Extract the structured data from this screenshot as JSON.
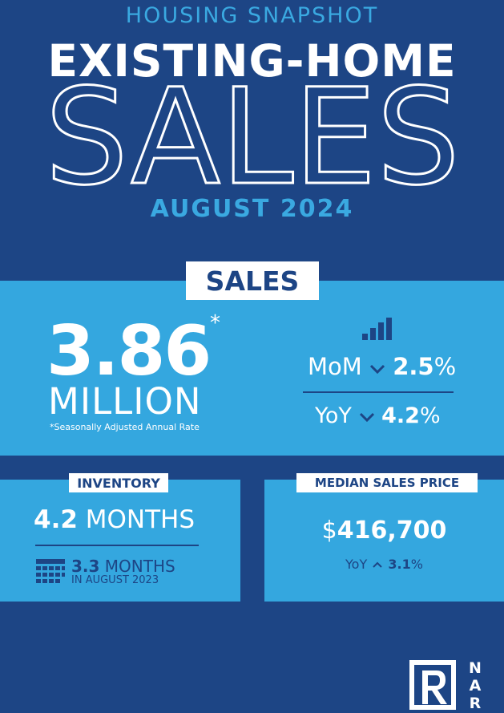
{
  "header": {
    "kicker": "HOUSING SNAPSHOT",
    "title": "EXISTING-HOME",
    "big": "SALES",
    "period": "AUGUST 2024"
  },
  "sales": {
    "label": "SALES",
    "value": "3.86",
    "asterisk": "*",
    "unit": "MILLION",
    "note": "*Seasonally Adjusted Annual Rate",
    "mom": {
      "label": "MoM",
      "value": "2.5",
      "unit": "%"
    },
    "yoy": {
      "label": "YoY",
      "value": "4.2",
      "unit": "%"
    }
  },
  "inventory": {
    "label": "INVENTORY",
    "value": "4.2",
    "unit": "MONTHS",
    "prior": {
      "value": "3.3",
      "unit": "MONTHS",
      "when": "IN AUGUST 2023"
    }
  },
  "price": {
    "label": "MEDIAN SALES PRICE",
    "currency": "$",
    "value": "416,700",
    "yoy": {
      "label": "YoY",
      "value": "3.1",
      "unit": "%"
    }
  },
  "logo": {
    "letters": [
      "N",
      "A",
      "R"
    ]
  }
}
